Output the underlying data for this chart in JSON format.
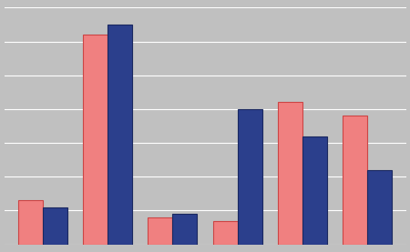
{
  "series1_values": [
    13,
    62,
    8,
    7,
    42,
    38
  ],
  "series2_values": [
    11,
    65,
    9,
    40,
    32,
    22
  ],
  "bar_color1": "#F08080",
  "bar_color2": "#2B3F8C",
  "bar_edge_color1": "#CC4444",
  "bar_edge_color2": "#1a2860",
  "background_color": "#C0C0C0",
  "ylim": [
    0,
    70
  ],
  "yticks": [
    0,
    10,
    20,
    30,
    40,
    50,
    60,
    70
  ],
  "bar_width": 0.38,
  "n_groups": 6,
  "grid_color": "#AAAAAA",
  "grid_linewidth": 0.8
}
